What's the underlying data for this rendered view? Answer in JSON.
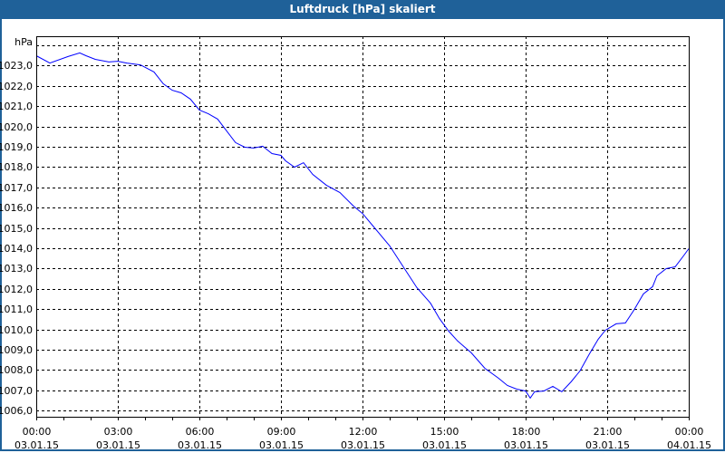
{
  "window": {
    "title": "Luftdruck [hPa] skaliert"
  },
  "colors": {
    "titlebar": "#1f6199",
    "line": "#0000ff",
    "grid": "#000000"
  },
  "chart_data": {
    "type": "line",
    "title": "Luftdruck [hPa] skaliert",
    "ylabel": "hPa",
    "xlabel": "",
    "ylim": [
      1005.7,
      1024.45
    ],
    "xlim": [
      0,
      24
    ],
    "grid": true,
    "yticks": [
      1006,
      1007,
      1008,
      1009,
      1010,
      1011,
      1012,
      1013,
      1014,
      1015,
      1016,
      1017,
      1018,
      1019,
      1020,
      1021,
      1022,
      1023
    ],
    "ytick_labels": [
      "1006,0",
      "1007,0",
      "1008,0",
      "1009,0",
      "1010,0",
      "1011,0",
      "1012,0",
      "1013,0",
      "1014,0",
      "1015,0",
      "1016,0",
      "1017,0",
      "1018,0",
      "1019,0",
      "1020,0",
      "1021,0",
      "1022,0",
      "1023,0"
    ],
    "xticks": [
      0,
      3,
      6,
      9,
      12,
      15,
      18,
      21,
      24
    ],
    "xtick_labels": [
      [
        "00:00",
        "03.01.15"
      ],
      [
        "03:00",
        "03.01.15"
      ],
      [
        "06:00",
        "03.01.15"
      ],
      [
        "09:00",
        "03.01.15"
      ],
      [
        "12:00",
        "03.01.15"
      ],
      [
        "15:00",
        "03.01.15"
      ],
      [
        "18:00",
        "03.01.15"
      ],
      [
        "21:00",
        "03.01.15"
      ],
      [
        "00:00",
        "04.01.15"
      ]
    ],
    "series": [
      {
        "name": "Luftdruck",
        "x": [
          0,
          0.5,
          1.17,
          1.6,
          1.83,
          2.17,
          2.67,
          3.0,
          3.33,
          3.83,
          4.33,
          4.67,
          5.0,
          5.33,
          5.67,
          6.0,
          6.33,
          6.67,
          7.0,
          7.33,
          7.67,
          8.0,
          8.33,
          8.67,
          9.0,
          9.17,
          9.5,
          9.83,
          10.17,
          10.67,
          11.17,
          11.67,
          12.0,
          12.5,
          13.0,
          13.5,
          14.0,
          14.5,
          14.83,
          15.17,
          15.5,
          16.0,
          16.5,
          17.0,
          17.33,
          17.67,
          18.0,
          18.17,
          18.33,
          18.67,
          19.0,
          19.33,
          19.67,
          20.0,
          20.33,
          20.67,
          20.93,
          21.33,
          21.67,
          22.0,
          22.33,
          22.67,
          22.83,
          23.17,
          23.5,
          23.83,
          24.0
        ],
        "values": [
          1023.49,
          1023.13,
          1023.45,
          1023.63,
          1023.49,
          1023.31,
          1023.18,
          1023.22,
          1023.13,
          1023.04,
          1022.69,
          1022.11,
          1021.79,
          1021.66,
          1021.35,
          1020.81,
          1020.63,
          1020.37,
          1019.79,
          1019.21,
          1018.98,
          1018.94,
          1019.03,
          1018.67,
          1018.58,
          1018.31,
          1018.0,
          1018.22,
          1017.64,
          1017.11,
          1016.75,
          1016.08,
          1015.72,
          1014.92,
          1014.12,
          1013.09,
          1012.06,
          1011.3,
          1010.54,
          1009.92,
          1009.43,
          1008.85,
          1008.09,
          1007.6,
          1007.24,
          1007.06,
          1006.97,
          1006.62,
          1006.93,
          1006.97,
          1007.2,
          1006.93,
          1007.42,
          1007.96,
          1008.76,
          1009.52,
          1009.96,
          1010.28,
          1010.32,
          1010.99,
          1011.75,
          1012.11,
          1012.64,
          1013.0,
          1013.09,
          1013.67,
          1013.98
        ]
      }
    ]
  }
}
